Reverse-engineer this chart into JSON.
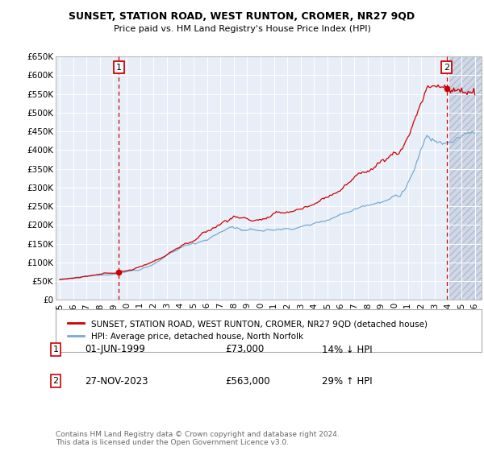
{
  "title": "SUNSET, STATION ROAD, WEST RUNTON, CROMER, NR27 9QD",
  "subtitle": "Price paid vs. HM Land Registry's House Price Index (HPI)",
  "ylim": [
    0,
    650000
  ],
  "yticks": [
    0,
    50000,
    100000,
    150000,
    200000,
    250000,
    300000,
    350000,
    400000,
    450000,
    500000,
    550000,
    600000,
    650000
  ],
  "ytick_labels": [
    "£0",
    "£50K",
    "£100K",
    "£150K",
    "£200K",
    "£250K",
    "£300K",
    "£350K",
    "£400K",
    "£450K",
    "£500K",
    "£550K",
    "£600K",
    "£650K"
  ],
  "xlim_start": 1994.7,
  "xlim_end": 2026.5,
  "xtick_years": [
    1995,
    1996,
    1997,
    1998,
    1999,
    2000,
    2001,
    2002,
    2003,
    2004,
    2005,
    2006,
    2007,
    2008,
    2009,
    2010,
    2011,
    2012,
    2013,
    2014,
    2015,
    2016,
    2017,
    2018,
    2019,
    2020,
    2021,
    2022,
    2023,
    2024,
    2025,
    2026
  ],
  "sale1_x": 1999.42,
  "sale1_y": 73000,
  "sale1_label": "1",
  "sale2_x": 2023.9,
  "sale2_y": 563000,
  "sale2_label": "2",
  "hatch_start": 2024.1,
  "legend_line1": "SUNSET, STATION ROAD, WEST RUNTON, CROMER, NR27 9QD (detached house)",
  "legend_line2": "HPI: Average price, detached house, North Norfolk",
  "note1_label": "1",
  "note1_date": "01-JUN-1999",
  "note1_price": "£73,000",
  "note1_hpi": "14% ↓ HPI",
  "note2_label": "2",
  "note2_date": "27-NOV-2023",
  "note2_price": "£563,000",
  "note2_hpi": "29% ↑ HPI",
  "footer": "Contains HM Land Registry data © Crown copyright and database right 2024.\nThis data is licensed under the Open Government Licence v3.0.",
  "bg_color": "#e8eef8",
  "hatch_color": "#d0d8e8",
  "red_color": "#cc0000",
  "blue_color": "#7aaad0",
  "grid_color": "#ffffff",
  "title_fontsize": 9.0,
  "subtitle_fontsize": 8.0,
  "tick_fontsize": 7.5,
  "legend_fontsize": 7.5,
  "note_fontsize": 8.5
}
